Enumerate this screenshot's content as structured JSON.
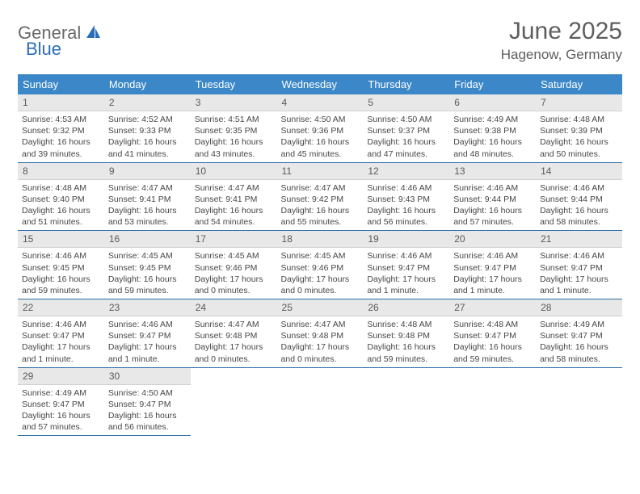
{
  "logo": {
    "part1": "General",
    "part2": "Blue"
  },
  "title": "June 2025",
  "location": "Hagenow, Germany",
  "colors": {
    "header_bg": "#3b87c8",
    "header_fg": "#ffffff",
    "daynum_bg": "#e8e8e8",
    "border": "#2f6fa8",
    "logo_gray": "#6a6a6a",
    "logo_blue": "#2a6db8"
  },
  "weekdays": [
    "Sunday",
    "Monday",
    "Tuesday",
    "Wednesday",
    "Thursday",
    "Friday",
    "Saturday"
  ],
  "days": [
    {
      "n": 1,
      "sr": "4:53 AM",
      "ss": "9:32 PM",
      "dl": "16 hours and 39 minutes."
    },
    {
      "n": 2,
      "sr": "4:52 AM",
      "ss": "9:33 PM",
      "dl": "16 hours and 41 minutes."
    },
    {
      "n": 3,
      "sr": "4:51 AM",
      "ss": "9:35 PM",
      "dl": "16 hours and 43 minutes."
    },
    {
      "n": 4,
      "sr": "4:50 AM",
      "ss": "9:36 PM",
      "dl": "16 hours and 45 minutes."
    },
    {
      "n": 5,
      "sr": "4:50 AM",
      "ss": "9:37 PM",
      "dl": "16 hours and 47 minutes."
    },
    {
      "n": 6,
      "sr": "4:49 AM",
      "ss": "9:38 PM",
      "dl": "16 hours and 48 minutes."
    },
    {
      "n": 7,
      "sr": "4:48 AM",
      "ss": "9:39 PM",
      "dl": "16 hours and 50 minutes."
    },
    {
      "n": 8,
      "sr": "4:48 AM",
      "ss": "9:40 PM",
      "dl": "16 hours and 51 minutes."
    },
    {
      "n": 9,
      "sr": "4:47 AM",
      "ss": "9:41 PM",
      "dl": "16 hours and 53 minutes."
    },
    {
      "n": 10,
      "sr": "4:47 AM",
      "ss": "9:41 PM",
      "dl": "16 hours and 54 minutes."
    },
    {
      "n": 11,
      "sr": "4:47 AM",
      "ss": "9:42 PM",
      "dl": "16 hours and 55 minutes."
    },
    {
      "n": 12,
      "sr": "4:46 AM",
      "ss": "9:43 PM",
      "dl": "16 hours and 56 minutes."
    },
    {
      "n": 13,
      "sr": "4:46 AM",
      "ss": "9:44 PM",
      "dl": "16 hours and 57 minutes."
    },
    {
      "n": 14,
      "sr": "4:46 AM",
      "ss": "9:44 PM",
      "dl": "16 hours and 58 minutes."
    },
    {
      "n": 15,
      "sr": "4:46 AM",
      "ss": "9:45 PM",
      "dl": "16 hours and 59 minutes."
    },
    {
      "n": 16,
      "sr": "4:45 AM",
      "ss": "9:45 PM",
      "dl": "16 hours and 59 minutes."
    },
    {
      "n": 17,
      "sr": "4:45 AM",
      "ss": "9:46 PM",
      "dl": "17 hours and 0 minutes."
    },
    {
      "n": 18,
      "sr": "4:45 AM",
      "ss": "9:46 PM",
      "dl": "17 hours and 0 minutes."
    },
    {
      "n": 19,
      "sr": "4:46 AM",
      "ss": "9:47 PM",
      "dl": "17 hours and 1 minute."
    },
    {
      "n": 20,
      "sr": "4:46 AM",
      "ss": "9:47 PM",
      "dl": "17 hours and 1 minute."
    },
    {
      "n": 21,
      "sr": "4:46 AM",
      "ss": "9:47 PM",
      "dl": "17 hours and 1 minute."
    },
    {
      "n": 22,
      "sr": "4:46 AM",
      "ss": "9:47 PM",
      "dl": "17 hours and 1 minute."
    },
    {
      "n": 23,
      "sr": "4:46 AM",
      "ss": "9:47 PM",
      "dl": "17 hours and 1 minute."
    },
    {
      "n": 24,
      "sr": "4:47 AM",
      "ss": "9:48 PM",
      "dl": "17 hours and 0 minutes."
    },
    {
      "n": 25,
      "sr": "4:47 AM",
      "ss": "9:48 PM",
      "dl": "17 hours and 0 minutes."
    },
    {
      "n": 26,
      "sr": "4:48 AM",
      "ss": "9:48 PM",
      "dl": "16 hours and 59 minutes."
    },
    {
      "n": 27,
      "sr": "4:48 AM",
      "ss": "9:47 PM",
      "dl": "16 hours and 59 minutes."
    },
    {
      "n": 28,
      "sr": "4:49 AM",
      "ss": "9:47 PM",
      "dl": "16 hours and 58 minutes."
    },
    {
      "n": 29,
      "sr": "4:49 AM",
      "ss": "9:47 PM",
      "dl": "16 hours and 57 minutes."
    },
    {
      "n": 30,
      "sr": "4:50 AM",
      "ss": "9:47 PM",
      "dl": "16 hours and 56 minutes."
    }
  ],
  "labels": {
    "sunrise": "Sunrise:",
    "sunset": "Sunset:",
    "daylight": "Daylight:"
  }
}
